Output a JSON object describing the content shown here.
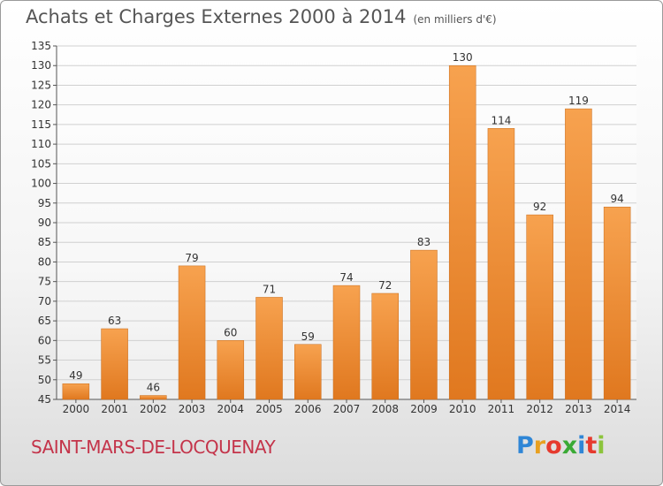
{
  "title": "Achats et Charges Externes 2000 à 2014",
  "unit": "(en milliers d'€)",
  "commune": "SAINT-MARS-DE-LOCQUENAY",
  "logo": {
    "letters": [
      "P",
      "r",
      "o",
      "x",
      "i",
      "t",
      "i"
    ],
    "colors": [
      "#2f86d6",
      "#e8a020",
      "#e63a2e",
      "#3aaa35",
      "#2f86d6",
      "#e63a2e",
      "#8cc43c"
    ]
  },
  "colors": {
    "bar_light": "#f7a24f",
    "bar_dark": "#e0781f",
    "grid": "#d0d0d0",
    "axis": "#555555"
  },
  "chart_data": {
    "type": "bar",
    "categories": [
      "2000",
      "2001",
      "2002",
      "2003",
      "2004",
      "2005",
      "2006",
      "2007",
      "2008",
      "2009",
      "2010",
      "2011",
      "2012",
      "2013",
      "2014"
    ],
    "values": [
      49,
      63,
      46,
      79,
      60,
      71,
      59,
      74,
      72,
      83,
      130,
      114,
      92,
      119,
      94
    ],
    "ylim": [
      45,
      135
    ],
    "yticks": [
      45,
      50,
      55,
      60,
      65,
      70,
      75,
      80,
      85,
      90,
      95,
      100,
      105,
      110,
      115,
      120,
      125,
      130,
      135
    ],
    "grid": true,
    "data_labels": true
  }
}
